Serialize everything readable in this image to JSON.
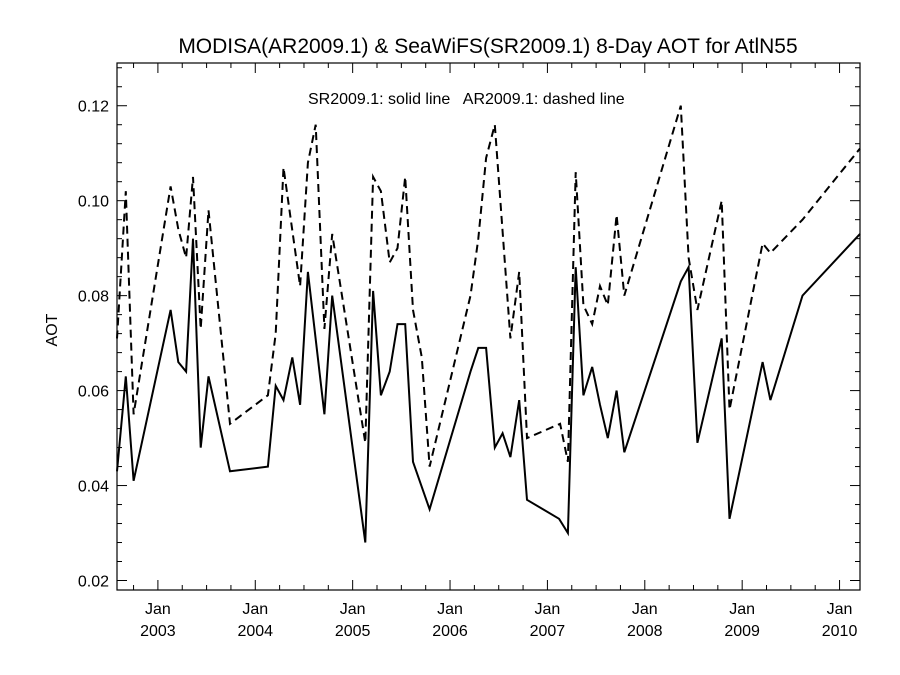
{
  "chart_data": {
    "type": "line",
    "title": "MODISA(AR2009.1) & SeaWiFS(SR2009.1) 8-Day AOT for AtlN55",
    "xlabel": "",
    "ylabel": "AOT",
    "annotation": "SR2009.1: solid line   AR2009.1: dashed line",
    "xlim": [
      2002.58,
      2010.21
    ],
    "ylim": [
      0.018,
      0.129
    ],
    "yticks": [
      0.02,
      0.04,
      0.06,
      0.08,
      0.1,
      0.12
    ],
    "ytick_labels": [
      "0.02",
      "0.04",
      "0.06",
      "0.08",
      "0.10",
      "0.12"
    ],
    "xticks": [
      {
        "x": 2003.0,
        "month": "Jan",
        "year": "2003"
      },
      {
        "x": 2004.0,
        "month": "Jan",
        "year": "2004"
      },
      {
        "x": 2005.0,
        "month": "Jan",
        "year": "2005"
      },
      {
        "x": 2006.0,
        "month": "Jan",
        "year": "2006"
      },
      {
        "x": 2007.0,
        "month": "Jan",
        "year": "2007"
      },
      {
        "x": 2008.0,
        "month": "Jan",
        "year": "2008"
      },
      {
        "x": 2009.0,
        "month": "Jan",
        "year": "2009"
      },
      {
        "x": 2010.0,
        "month": "Jan",
        "year": "2010"
      }
    ],
    "grid": false,
    "legend": "none",
    "series": [
      {
        "style": "solid",
        "color": "#000000",
        "points": [
          [
            2002.58,
            0.043
          ],
          [
            2002.67,
            0.063
          ],
          [
            2002.75,
            0.041
          ],
          [
            2003.13,
            0.077
          ],
          [
            2003.21,
            0.066
          ],
          [
            2003.29,
            0.064
          ],
          [
            2003.36,
            0.092
          ],
          [
            2003.44,
            0.048
          ],
          [
            2003.52,
            0.063
          ],
          [
            2003.74,
            0.043
          ],
          [
            2004.13,
            0.044
          ],
          [
            2004.21,
            0.061
          ],
          [
            2004.29,
            0.058
          ],
          [
            2004.38,
            0.067
          ],
          [
            2004.46,
            0.057
          ],
          [
            2004.54,
            0.085
          ],
          [
            2004.71,
            0.055
          ],
          [
            2004.79,
            0.08
          ],
          [
            2005.13,
            0.028
          ],
          [
            2005.21,
            0.081
          ],
          [
            2005.29,
            0.059
          ],
          [
            2005.38,
            0.064
          ],
          [
            2005.46,
            0.074
          ],
          [
            2005.54,
            0.074
          ],
          [
            2005.62,
            0.045
          ],
          [
            2005.79,
            0.035
          ],
          [
            2006.21,
            0.064
          ],
          [
            2006.29,
            0.069
          ],
          [
            2006.37,
            0.069
          ],
          [
            2006.46,
            0.048
          ],
          [
            2006.54,
            0.051
          ],
          [
            2006.62,
            0.046
          ],
          [
            2006.71,
            0.058
          ],
          [
            2006.79,
            0.037
          ],
          [
            2007.12,
            0.033
          ],
          [
            2007.21,
            0.03
          ],
          [
            2007.29,
            0.086
          ],
          [
            2007.37,
            0.059
          ],
          [
            2007.46,
            0.065
          ],
          [
            2007.54,
            0.057
          ],
          [
            2007.62,
            0.05
          ],
          [
            2007.71,
            0.06
          ],
          [
            2007.79,
            0.047
          ],
          [
            2008.37,
            0.083
          ],
          [
            2008.45,
            0.086
          ],
          [
            2008.54,
            0.049
          ],
          [
            2008.79,
            0.071
          ],
          [
            2008.87,
            0.033
          ],
          [
            2009.21,
            0.066
          ],
          [
            2009.29,
            0.058
          ],
          [
            2009.62,
            0.08
          ],
          [
            2010.21,
            0.093
          ]
        ]
      },
      {
        "style": "dashed",
        "color": "#000000",
        "points": [
          [
            2002.58,
            0.071
          ],
          [
            2002.67,
            0.102
          ],
          [
            2002.75,
            0.055
          ],
          [
            2003.13,
            0.103
          ],
          [
            2003.21,
            0.094
          ],
          [
            2003.29,
            0.088
          ],
          [
            2003.36,
            0.105
          ],
          [
            2003.44,
            0.073
          ],
          [
            2003.52,
            0.098
          ],
          [
            2003.74,
            0.053
          ],
          [
            2004.13,
            0.059
          ],
          [
            2004.21,
            0.072
          ],
          [
            2004.29,
            0.107
          ],
          [
            2004.46,
            0.082
          ],
          [
            2004.54,
            0.108
          ],
          [
            2004.62,
            0.116
          ],
          [
            2004.71,
            0.073
          ],
          [
            2004.79,
            0.093
          ],
          [
            2005.13,
            0.049
          ],
          [
            2005.21,
            0.105
          ],
          [
            2005.29,
            0.102
          ],
          [
            2005.38,
            0.087
          ],
          [
            2005.46,
            0.09
          ],
          [
            2005.54,
            0.105
          ],
          [
            2005.62,
            0.077
          ],
          [
            2005.71,
            0.067
          ],
          [
            2005.79,
            0.044
          ],
          [
            2006.21,
            0.08
          ],
          [
            2006.29,
            0.092
          ],
          [
            2006.37,
            0.109
          ],
          [
            2006.46,
            0.116
          ],
          [
            2006.62,
            0.071
          ],
          [
            2006.71,
            0.085
          ],
          [
            2006.79,
            0.05
          ],
          [
            2007.13,
            0.053
          ],
          [
            2007.21,
            0.045
          ],
          [
            2007.29,
            0.106
          ],
          [
            2007.37,
            0.078
          ],
          [
            2007.46,
            0.074
          ],
          [
            2007.54,
            0.082
          ],
          [
            2007.62,
            0.078
          ],
          [
            2007.71,
            0.097
          ],
          [
            2007.79,
            0.08
          ],
          [
            2008.37,
            0.12
          ],
          [
            2008.45,
            0.088
          ],
          [
            2008.54,
            0.077
          ],
          [
            2008.79,
            0.1
          ],
          [
            2008.87,
            0.056
          ],
          [
            2009.21,
            0.091
          ],
          [
            2009.29,
            0.089
          ],
          [
            2009.62,
            0.096
          ],
          [
            2010.21,
            0.111
          ]
        ]
      }
    ]
  }
}
